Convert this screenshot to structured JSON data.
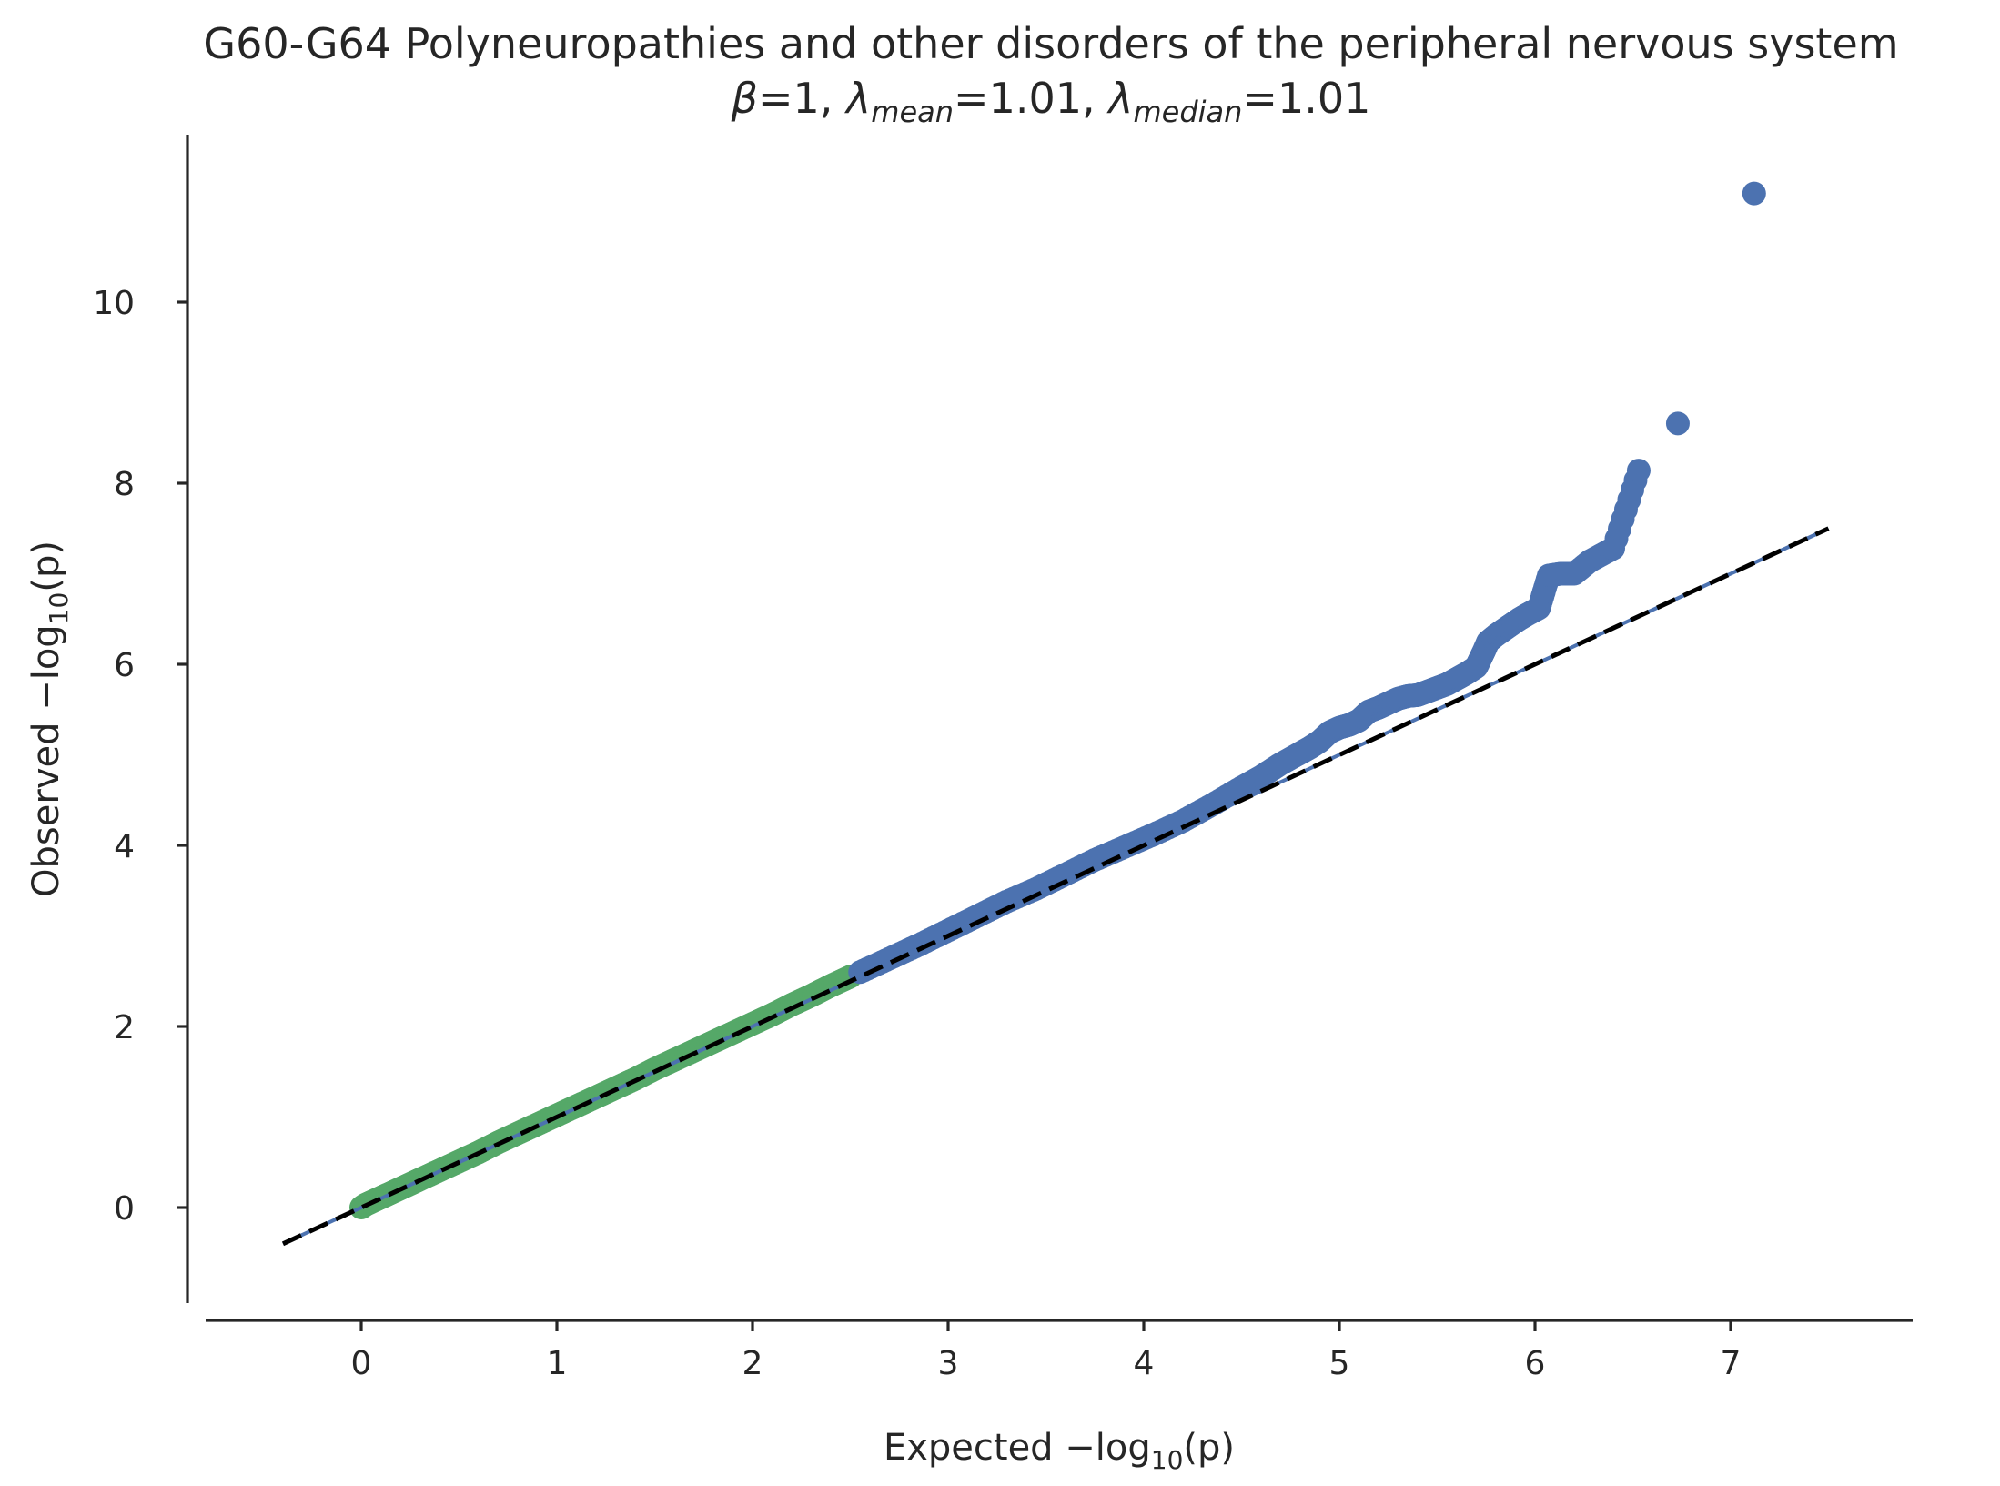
{
  "chart_data": {
    "type": "scatter",
    "title": "G60-G64 Polyneuropathies and other disorders of the peripheral nervous system",
    "subtitle": {
      "beta_label": "β",
      "beta_value": "1",
      "lambda_mean_label": "λ",
      "lambda_mean_sub": "mean",
      "lambda_mean_value": "1.01",
      "lambda_median_label": "λ",
      "lambda_median_sub": "median",
      "lambda_median_value": "1.01"
    },
    "xlabel": {
      "prefix": "Expected −log",
      "sub": "10",
      "suffix": "(p)"
    },
    "ylabel": {
      "prefix": "Observed −log",
      "sub": "10",
      "suffix": "(p)"
    },
    "xlim": [
      -0.8,
      7.9
    ],
    "ylim": [
      -1.0,
      11.8
    ],
    "xticks": [
      "0",
      "1",
      "2",
      "3",
      "4",
      "5",
      "6",
      "7"
    ],
    "yticks": [
      "0",
      "2",
      "4",
      "6",
      "8",
      "10"
    ],
    "grid": false,
    "reference_line": {
      "style": "dashed",
      "color": "#000000",
      "from": [
        -0.4,
        -0.4
      ],
      "to": [
        7.5,
        7.5
      ]
    },
    "colors": {
      "low_series": "#55a868",
      "high_series": "#4c72b0",
      "reference": "#000000"
    },
    "series": [
      {
        "color": "#55a868",
        "x": [
          0.0,
          0.02,
          0.05,
          0.1,
          0.15,
          0.2,
          0.25,
          0.3,
          0.4,
          0.5,
          0.6,
          0.7,
          0.8,
          0.9,
          1.0,
          1.1,
          1.2,
          1.3,
          1.4,
          1.5,
          1.6,
          1.7,
          1.8,
          1.9,
          2.0,
          2.1,
          2.2,
          2.3,
          2.4,
          2.5
        ],
        "y": [
          0.0,
          0.03,
          0.06,
          0.11,
          0.16,
          0.21,
          0.26,
          0.31,
          0.41,
          0.51,
          0.61,
          0.72,
          0.82,
          0.92,
          1.02,
          1.12,
          1.22,
          1.32,
          1.42,
          1.53,
          1.63,
          1.73,
          1.83,
          1.93,
          2.03,
          2.13,
          2.24,
          2.34,
          2.45,
          2.55
        ]
      },
      {
        "color": "#4c72b0",
        "x": [
          2.55,
          2.7,
          2.85,
          3.0,
          3.15,
          3.3,
          3.45,
          3.6,
          3.75,
          3.9,
          4.05,
          4.2,
          4.35,
          4.5,
          4.6,
          4.7,
          4.8,
          4.85,
          4.9,
          4.95,
          5.0,
          5.05,
          5.1,
          5.15,
          5.2,
          5.25,
          5.3,
          5.35,
          5.4,
          5.45,
          5.5,
          5.55,
          5.6,
          5.65,
          5.7,
          5.72,
          5.74,
          5.76,
          5.8,
          5.84,
          5.88,
          5.92,
          5.96,
          6.02,
          6.07,
          6.13,
          6.2,
          6.28,
          6.4,
          6.53,
          6.73,
          7.12
        ],
        "y": [
          2.6,
          2.75,
          2.9,
          3.06,
          3.22,
          3.38,
          3.52,
          3.68,
          3.84,
          3.98,
          4.12,
          4.27,
          4.45,
          4.64,
          4.76,
          4.9,
          5.02,
          5.08,
          5.15,
          5.25,
          5.3,
          5.33,
          5.38,
          5.48,
          5.52,
          5.57,
          5.62,
          5.65,
          5.66,
          5.7,
          5.74,
          5.78,
          5.84,
          5.9,
          5.97,
          6.06,
          6.15,
          6.25,
          6.32,
          6.38,
          6.44,
          6.5,
          6.55,
          6.62,
          6.98,
          7.0,
          7.0,
          7.14,
          7.28,
          8.14,
          8.66,
          11.2
        ]
      }
    ]
  }
}
